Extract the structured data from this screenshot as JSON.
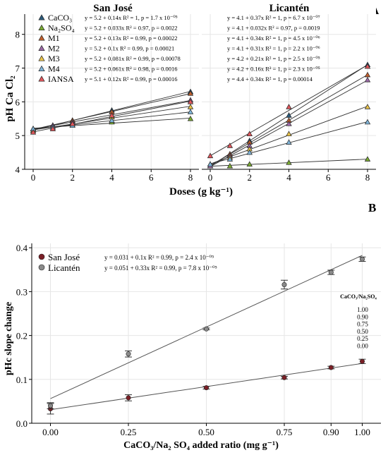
{
  "panel_a": {
    "label": "A",
    "ylabel": "pH Ca Cl₂",
    "xlabel": "Doses (g kg⁻¹)",
    "chart_data": [
      {
        "type": "scatter",
        "facet": "San José",
        "x": [
          0,
          1,
          2,
          4,
          8
        ],
        "xlim": [
          0,
          8
        ],
        "ylim": [
          4,
          8.6
        ],
        "xticks": [
          "0",
          "2",
          "4",
          "6",
          "8"
        ],
        "yticks": [
          "4",
          "5",
          "6",
          "7",
          "8"
        ],
        "grid": true,
        "legend_position": "top-left",
        "series": [
          {
            "name": "CaCO₃",
            "color": "#2b5a7a",
            "values": [
              5.15,
              5.3,
              5.45,
              5.75,
              6.3
            ],
            "equation": "y = 5.2 + 0.14x  R² = 1, p = 1.7 x 10⁻⁰⁵"
          },
          {
            "name": "Na₂SO₄",
            "color": "#7aaa33",
            "values": [
              5.2,
              5.25,
              5.3,
              5.4,
              5.5
            ],
            "equation": "y = 5.2 + 0.033x  R² = 0.97, p = 0.0022"
          },
          {
            "name": "M1",
            "color": "#c0602e",
            "values": [
              5.2,
              5.3,
              5.45,
              5.7,
              6.25
            ],
            "equation": "y = 5.2 + 0.13x  R² = 0.99, p = 0.00022"
          },
          {
            "name": "M2",
            "color": "#9b6aa6",
            "values": [
              5.2,
              5.3,
              5.4,
              5.6,
              6.05
            ],
            "equation": "y = 5.2 + 0.1x  R² = 0.99, p = 0.00021"
          },
          {
            "name": "M3",
            "color": "#e8c24a",
            "values": [
              5.15,
              5.25,
              5.35,
              5.55,
              5.85
            ],
            "equation": "y = 5.2 + 0.081x  R² = 0.99, p = 0.00078"
          },
          {
            "name": "M4",
            "color": "#7fb4d8",
            "values": [
              5.2,
              5.25,
              5.3,
              5.45,
              5.7
            ],
            "equation": "y = 5.2 + 0.061x  R² = 0.98, p = 0.0016"
          },
          {
            "name": "IANSA",
            "color": "#e0575c",
            "values": [
              5.1,
              5.2,
              5.35,
              5.6,
              6.0
            ],
            "equation": "y = 5.1 + 0.12x  R² = 0.99, p = 0.00016"
          }
        ]
      },
      {
        "type": "scatter",
        "facet": "Licantén",
        "x": [
          0,
          1,
          2,
          4,
          8
        ],
        "xlim": [
          0,
          8
        ],
        "ylim": [
          4,
          8.6
        ],
        "xticks": [
          "0",
          "2",
          "4",
          "6",
          "8"
        ],
        "grid": true,
        "series": [
          {
            "name": "CaCO₃",
            "color": "#2b5a7a",
            "values": [
              4.1,
              4.45,
              4.85,
              5.6,
              7.1
            ],
            "equation": "y = 4.1 + 0.37x  R² = 1, p = 6.7 x 10⁻⁰⁷"
          },
          {
            "name": "Na₂SO₄",
            "color": "#7aaa33",
            "values": [
              4.1,
              4.1,
              4.15,
              4.2,
              4.3
            ],
            "equation": "y = 4.1 + 0.032x  R² = 0.97, p = 0.0019"
          },
          {
            "name": "M1",
            "color": "#c0602e",
            "values": [
              4.1,
              4.45,
              4.8,
              5.45,
              6.8
            ],
            "equation": "y = 4.1 + 0.34x  R² = 1, p = 4.5 x 10⁻⁰⁶"
          },
          {
            "name": "M2",
            "color": "#9b6aa6",
            "values": [
              4.1,
              4.4,
              4.7,
              5.35,
              6.65
            ],
            "equation": "y = 4.1 + 0.31x  R² = 1, p = 2.2 x 10⁻⁰⁶"
          },
          {
            "name": "M3",
            "color": "#e8c24a",
            "values": [
              4.15,
              4.35,
              4.6,
              5.05,
              5.85
            ],
            "equation": "y = 4.2 + 0.21x  R² = 1, p = 2.5 x 10⁻⁰⁵"
          },
          {
            "name": "M4",
            "color": "#7fb4d8",
            "values": [
              4.15,
              4.3,
              4.5,
              4.8,
              5.4
            ],
            "equation": "y = 4.2 + 0.16x  R² = 1, p = 2.3 x 10⁻⁰⁵"
          },
          {
            "name": "IANSA",
            "color": "#e0575c",
            "values": [
              4.4,
              4.7,
              5.05,
              5.85,
              7.05
            ],
            "equation": "y = 4.4 + 0.34x  R² = 1, p = 0.00014"
          }
        ]
      }
    ]
  },
  "panel_b": {
    "label": "B",
    "chart_data": {
      "type": "scatter",
      "xlabel": "CaCO₃/Na₂ SO₄ added ratio (mg g⁻¹)",
      "ylabel": "pHc slope change",
      "xlim": [
        -0.06,
        1.06
      ],
      "ylim": [
        0,
        0.41
      ],
      "xticks": [
        0.0,
        0.25,
        0.5,
        0.75,
        0.9,
        1.0
      ],
      "xtick_labels": [
        "0.00",
        "0.25",
        "0.50",
        "0.75",
        "0.90",
        "1.00"
      ],
      "yticks": [
        0.0,
        0.1,
        0.2,
        0.3,
        0.4
      ],
      "ytick_labels": [
        "0.0",
        "0.1",
        "0.2",
        "0.3",
        "0.4"
      ],
      "grid": true,
      "legend_position": "top-left",
      "x": [
        0.0,
        0.25,
        0.5,
        0.75,
        0.9,
        1.0
      ],
      "series": [
        {
          "name": "San José",
          "color": "#7a1f26",
          "values": [
            0.033,
            0.058,
            0.081,
            0.104,
            0.127,
            0.141
          ],
          "errors": [
            0.012,
            0.007,
            0.003,
            0.003,
            0.003,
            0.005
          ],
          "equation": "y = 0.031 + 0.1x  R² = 0.99, p = 2.4 x 10⁻⁰⁵"
        },
        {
          "name": "Licantén",
          "color": "#8a8a8a",
          "values": [
            0.04,
            0.158,
            0.215,
            0.316,
            0.344,
            0.374
          ],
          "errors": [
            0.007,
            0.007,
            0.002,
            0.01,
            0.005,
            0.005
          ],
          "equation": "y = 0.051 + 0.33x  R² = 0.99, p = 7.8 x 10⁻⁰⁵"
        }
      ],
      "inset_table": {
        "title": "CaCO₃/Na₂SO₄",
        "rows": [
          "1.00",
          "0.90",
          "0.75",
          "0.50",
          "0.25",
          "0.00"
        ]
      }
    }
  }
}
